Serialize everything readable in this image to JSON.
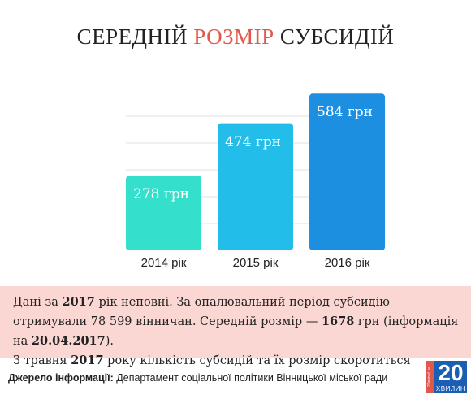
{
  "title": {
    "part1": "СЕРЕДНІЙ ",
    "accent": "РОЗМІР",
    "part2": " СУБСИДІЙ",
    "accent_color": "#e2574c"
  },
  "chart_data": {
    "type": "bar",
    "categories": [
      "2014 рік",
      "2015 рік",
      "2016 рік"
    ],
    "values": [
      278,
      474,
      584
    ],
    "value_labels": [
      "278 грн",
      "474 грн",
      "584 грн"
    ],
    "bar_colors": [
      "#34e0cc",
      "#22bde8",
      "#1d8fe0"
    ],
    "ylim": [
      0,
      600
    ],
    "grid": true
  },
  "note": {
    "t1": "Дані за ",
    "b1": "2017",
    "t2": " рік неповні. За опалювальний період субсидію отримували 78 599 вінничан. Середній розмір — ",
    "b2": "1678",
    "t3": " грн (інформація на ",
    "b3": "20.04.2017",
    "t4": ").",
    "line3_pre": "З травня ",
    "line3_b": "2017",
    "line3_post": " року кількість субсидій та їх розмір скоротиться"
  },
  "source": {
    "label": "Джерело інформації:",
    "text": " Департамент соціальної політики Вінницької міської ради"
  },
  "logo": {
    "side": "20minut.ua",
    "number": "20",
    "word": "ХВИЛИН"
  }
}
